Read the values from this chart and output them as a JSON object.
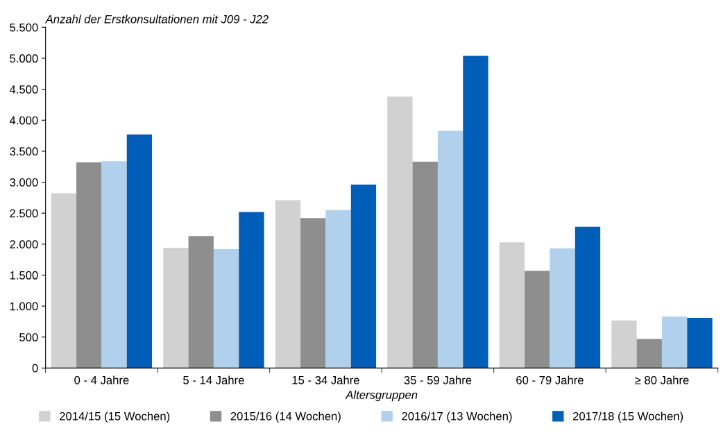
{
  "chart_data": {
    "type": "bar",
    "title": "Anzahl der Erstkonsultationen mit J09 - J22",
    "xlabel": "Altersgruppen",
    "categories": [
      "0 - 4 Jahre",
      "5 - 14 Jahre",
      "15 - 34 Jahre",
      "35 - 59 Jahre",
      "60 - 79 Jahre",
      "≥ 80 Jahre"
    ],
    "series": [
      {
        "name": "2014/15 (15 Wochen)",
        "color": "#d0d1d0",
        "values": [
          2820,
          1940,
          2710,
          4380,
          2030,
          770
        ]
      },
      {
        "name": "2015/16 (14 Wochen)",
        "color": "#8e8e8e",
        "values": [
          3320,
          2130,
          2420,
          3330,
          1570,
          470
        ]
      },
      {
        "name": "2016/17 (13 Wochen)",
        "color": "#b1d0eb",
        "values": [
          3340,
          1920,
          2550,
          3830,
          1930,
          830
        ]
      },
      {
        "name": "2017/18 (15 Wochen)",
        "color": "#005eb8",
        "values": [
          3770,
          2520,
          2960,
          5040,
          2280,
          810
        ]
      }
    ],
    "ylim": [
      0,
      5500
    ],
    "yticks": [
      {
        "value": 0,
        "label": "0"
      },
      {
        "value": 500,
        "label": "500"
      },
      {
        "value": 1000,
        "label": "1.000"
      },
      {
        "value": 1500,
        "label": "1.500"
      },
      {
        "value": 2000,
        "label": "2.000"
      },
      {
        "value": 2500,
        "label": "2.500"
      },
      {
        "value": 3000,
        "label": "3.000"
      },
      {
        "value": 3500,
        "label": "3.500"
      },
      {
        "value": 4000,
        "label": "4.000"
      },
      {
        "value": 4500,
        "label": "4.500"
      },
      {
        "value": 5000,
        "label": "5.000"
      },
      {
        "value": 5500,
        "label": "5.500"
      }
    ],
    "grid": false,
    "legend": "bottom"
  }
}
